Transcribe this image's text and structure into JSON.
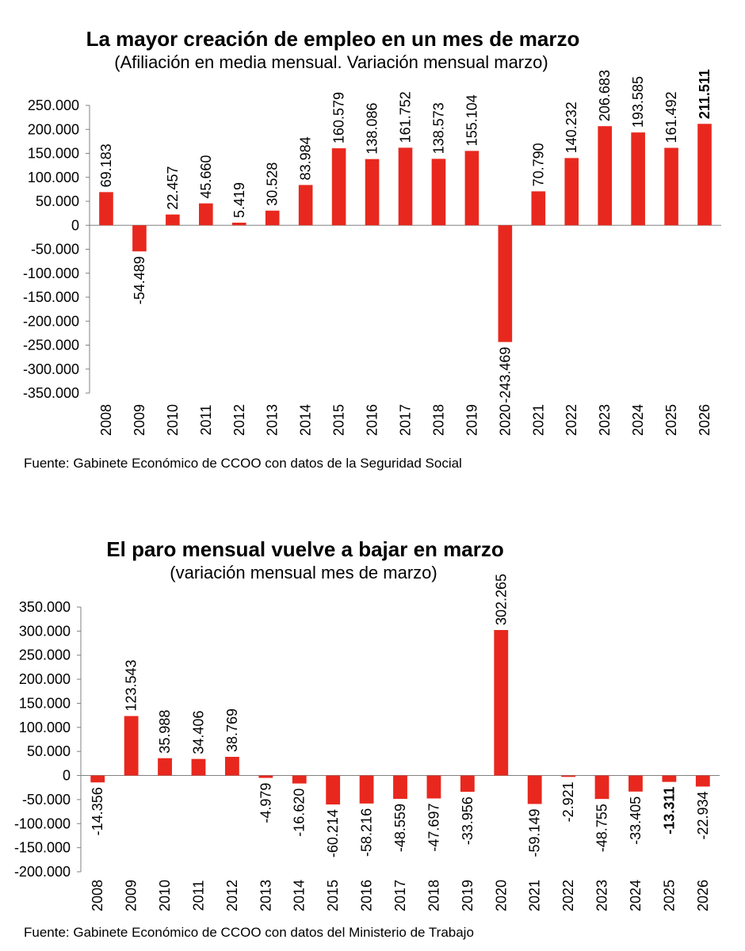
{
  "chart_data": [
    {
      "type": "bar",
      "title": "La mayor creación de empleo en un mes de marzo",
      "subtitle": "(Afiliación en media mensual. Variación mensual marzo)",
      "source": "Fuente: Gabinete Económico de CCOO con datos de la Seguridad Social",
      "categories": [
        "2008",
        "2009",
        "2010",
        "2011",
        "2012",
        "2013",
        "2014",
        "2015",
        "2016",
        "2017",
        "2018",
        "2019",
        "2020",
        "2021",
        "2022",
        "2023",
        "2024",
        "2025",
        "2026"
      ],
      "values": [
        69183,
        -54489,
        22457,
        45660,
        5419,
        30528,
        83984,
        160579,
        138086,
        161752,
        138573,
        155104,
        -243469,
        70790,
        140232,
        206683,
        193585,
        161492,
        211511
      ],
      "labels": [
        "69.183",
        "-54.489",
        "22.457",
        "45.660",
        "5.419",
        "30.528",
        "83.984",
        "160.579",
        "138.086",
        "161.752",
        "138.573",
        "155.104",
        "-243.469",
        "70.790",
        "140.232",
        "206.683",
        "193.585",
        "161.492",
        "211.511"
      ],
      "bold_labels": [
        "211.511"
      ],
      "ylim": [
        -350000,
        250000
      ],
      "yticks": [
        250000,
        200000,
        150000,
        100000,
        50000,
        0,
        -50000,
        -100000,
        -150000,
        -200000,
        -250000,
        -300000,
        -350000
      ],
      "ytick_labels": [
        "250.000",
        "200.000",
        "150.000",
        "100.000",
        "50.000",
        "0",
        "-50.000",
        "-100.000",
        "-150.000",
        "-200.000",
        "-250.000",
        "-300.000",
        "-350.000"
      ],
      "bar_color": "#e8281e",
      "grid": false,
      "legend": "none"
    },
    {
      "type": "bar",
      "title": "El paro mensual vuelve a bajar en marzo",
      "subtitle": "(variación mensual mes de marzo)",
      "source": "Fuente: Gabinete Económico de CCOO con datos del Ministerio de Trabajo",
      "categories": [
        "2008",
        "2009",
        "2010",
        "2011",
        "2012",
        "2013",
        "2014",
        "2015",
        "2016",
        "2017",
        "2018",
        "2019",
        "2020",
        "2021",
        "2022",
        "2023",
        "2024",
        "2025",
        "2026"
      ],
      "values": [
        -14356,
        123543,
        35988,
        34406,
        38769,
        -4979,
        -16620,
        -60214,
        -58216,
        -48559,
        -47697,
        -33956,
        302265,
        -59149,
        -2921,
        -48755,
        -33405,
        -13311,
        -22934
      ],
      "labels": [
        "-14.356",
        "123.543",
        "35.988",
        "34.406",
        "38.769",
        "-4.979",
        "-16.620",
        "-60.214",
        "-58.216",
        "-48.559",
        "-47.697",
        "-33.956",
        "302.265",
        "-59.149",
        "-2.921",
        "-48.755",
        "-33.405",
        "-13.311",
        "-22.934"
      ],
      "bold_labels": [
        "-13.311"
      ],
      "ylim": [
        -200000,
        350000
      ],
      "yticks": [
        350000,
        300000,
        250000,
        200000,
        150000,
        100000,
        50000,
        0,
        -50000,
        -100000,
        -150000,
        -200000
      ],
      "ytick_labels": [
        "350.000",
        "300.000",
        "250.000",
        "200.000",
        "150.000",
        "100.000",
        "50.000",
        "0",
        "-50.000",
        "-100.000",
        "-150.000",
        "-200.000"
      ],
      "bar_color": "#e8281e",
      "grid": false,
      "legend": "none"
    }
  ]
}
